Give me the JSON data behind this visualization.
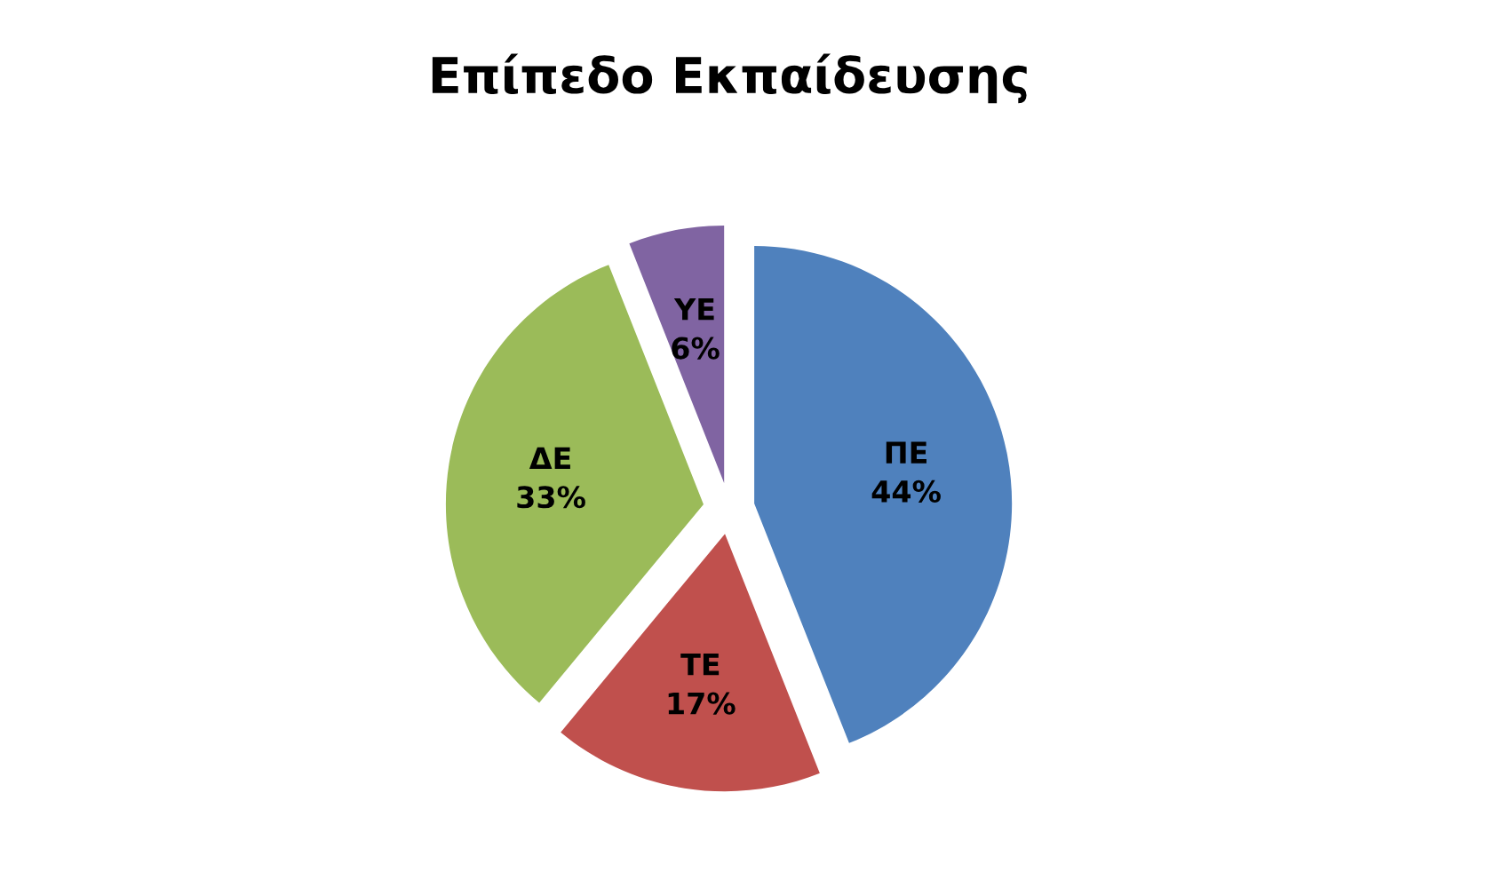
{
  "chart_data": {
    "type": "pie",
    "title": "Επίπεδο Εκπαίδευσης",
    "categories": [
      "ΠΕ",
      "ΤΕ",
      "ΔΕ",
      "ΥΕ"
    ],
    "values": [
      44,
      17,
      33,
      6
    ],
    "colors": [
      "#4f81bd",
      "#c0504d",
      "#9bbb59",
      "#8064a2"
    ],
    "value_labels": [
      "44%",
      "17%",
      "33%",
      "6%"
    ],
    "legend": false
  }
}
